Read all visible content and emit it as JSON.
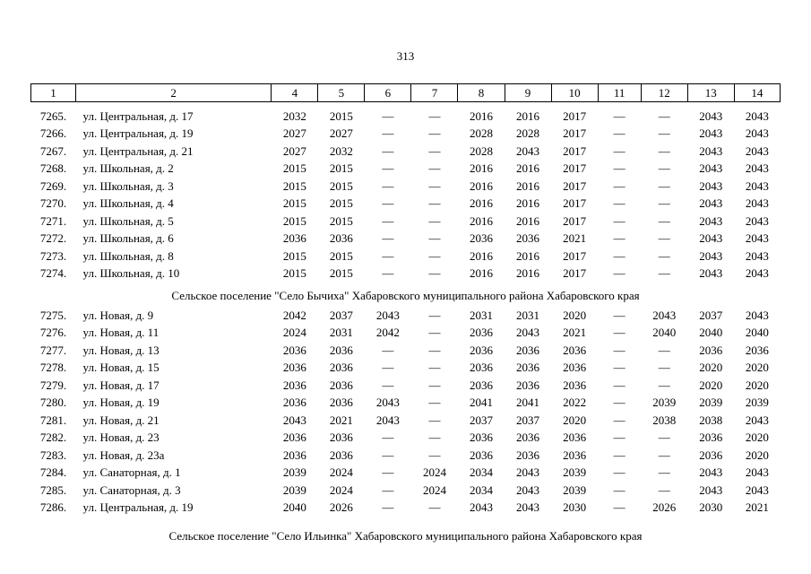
{
  "page": {
    "number": "313"
  },
  "table": {
    "headers": [
      "1",
      "2",
      "4",
      "5",
      "6",
      "7",
      "8",
      "9",
      "10",
      "11",
      "12",
      "13",
      "14"
    ],
    "sections": [
      {
        "title": "",
        "rows": [
          {
            "num": "7265.",
            "address": "ул. Центральная, д. 17",
            "values": [
              "2032",
              "2015",
              "—",
              "—",
              "2016",
              "2016",
              "2017",
              "—",
              "—",
              "2043",
              "2043"
            ]
          },
          {
            "num": "7266.",
            "address": "ул. Центральная, д. 19",
            "values": [
              "2027",
              "2027",
              "—",
              "—",
              "2028",
              "2028",
              "2017",
              "—",
              "—",
              "2043",
              "2043"
            ]
          },
          {
            "num": "7267.",
            "address": "ул. Центральная, д. 21",
            "values": [
              "2027",
              "2032",
              "—",
              "—",
              "2028",
              "2043",
              "2017",
              "—",
              "—",
              "2043",
              "2043"
            ]
          },
          {
            "num": "7268.",
            "address": "ул. Школьная, д. 2",
            "values": [
              "2015",
              "2015",
              "—",
              "—",
              "2016",
              "2016",
              "2017",
              "—",
              "—",
              "2043",
              "2043"
            ]
          },
          {
            "num": "7269.",
            "address": "ул. Школьная, д. 3",
            "values": [
              "2015",
              "2015",
              "—",
              "—",
              "2016",
              "2016",
              "2017",
              "—",
              "—",
              "2043",
              "2043"
            ]
          },
          {
            "num": "7270.",
            "address": "ул. Школьная, д. 4",
            "values": [
              "2015",
              "2015",
              "—",
              "—",
              "2016",
              "2016",
              "2017",
              "—",
              "—",
              "2043",
              "2043"
            ]
          },
          {
            "num": "7271.",
            "address": "ул. Школьная, д. 5",
            "values": [
              "2015",
              "2015",
              "—",
              "—",
              "2016",
              "2016",
              "2017",
              "—",
              "—",
              "2043",
              "2043"
            ]
          },
          {
            "num": "7272.",
            "address": "ул. Школьная, д. 6",
            "values": [
              "2036",
              "2036",
              "—",
              "—",
              "2036",
              "2036",
              "2021",
              "—",
              "—",
              "2043",
              "2043"
            ]
          },
          {
            "num": "7273.",
            "address": "ул. Школьная, д. 8",
            "values": [
              "2015",
              "2015",
              "—",
              "—",
              "2016",
              "2016",
              "2017",
              "—",
              "—",
              "2043",
              "2043"
            ]
          },
          {
            "num": "7274.",
            "address": "ул. Школьная, д. 10",
            "values": [
              "2015",
              "2015",
              "—",
              "—",
              "2016",
              "2016",
              "2017",
              "—",
              "—",
              "2043",
              "2043"
            ]
          }
        ]
      },
      {
        "title": "Сельское поселение \"Село Бычиха\" Хабаровского муниципального района Хабаровского края",
        "rows": [
          {
            "num": "7275.",
            "address": "ул. Новая, д. 9",
            "values": [
              "2042",
              "2037",
              "2043",
              "—",
              "2031",
              "2031",
              "2020",
              "—",
              "2043",
              "2037",
              "2043"
            ]
          },
          {
            "num": "7276.",
            "address": "ул. Новая, д. 11",
            "values": [
              "2024",
              "2031",
              "2042",
              "—",
              "2036",
              "2043",
              "2021",
              "—",
              "2040",
              "2040",
              "2040"
            ]
          },
          {
            "num": "7277.",
            "address": "ул. Новая, д. 13",
            "values": [
              "2036",
              "2036",
              "—",
              "—",
              "2036",
              "2036",
              "2036",
              "—",
              "—",
              "2036",
              "2036"
            ]
          },
          {
            "num": "7278.",
            "address": "ул. Новая, д. 15",
            "values": [
              "2036",
              "2036",
              "—",
              "—",
              "2036",
              "2036",
              "2036",
              "—",
              "—",
              "2020",
              "2020"
            ]
          },
          {
            "num": "7279.",
            "address": "ул. Новая, д. 17",
            "values": [
              "2036",
              "2036",
              "—",
              "—",
              "2036",
              "2036",
              "2036",
              "—",
              "—",
              "2020",
              "2020"
            ]
          },
          {
            "num": "7280.",
            "address": "ул. Новая, д. 19",
            "values": [
              "2036",
              "2036",
              "2043",
              "—",
              "2041",
              "2041",
              "2022",
              "—",
              "2039",
              "2039",
              "2039"
            ]
          },
          {
            "num": "7281.",
            "address": "ул. Новая, д. 21",
            "values": [
              "2043",
              "2021",
              "2043",
              "—",
              "2037",
              "2037",
              "2020",
              "—",
              "2038",
              "2038",
              "2043"
            ]
          },
          {
            "num": "7282.",
            "address": "ул. Новая, д. 23",
            "values": [
              "2036",
              "2036",
              "—",
              "—",
              "2036",
              "2036",
              "2036",
              "—",
              "—",
              "2036",
              "2020"
            ]
          },
          {
            "num": "7283.",
            "address": "ул. Новая, д. 23а",
            "values": [
              "2036",
              "2036",
              "—",
              "—",
              "2036",
              "2036",
              "2036",
              "—",
              "—",
              "2036",
              "2020"
            ]
          },
          {
            "num": "7284.",
            "address": "ул. Санаторная, д. 1",
            "values": [
              "2039",
              "2024",
              "—",
              "2024",
              "2034",
              "2043",
              "2039",
              "—",
              "—",
              "2043",
              "2043"
            ]
          },
          {
            "num": "7285.",
            "address": "ул. Санаторная, д. 3",
            "values": [
              "2039",
              "2024",
              "—",
              "2024",
              "2034",
              "2043",
              "2039",
              "—",
              "—",
              "2043",
              "2043"
            ]
          },
          {
            "num": "7286.",
            "address": "ул. Центральная, д. 19",
            "values": [
              "2040",
              "2026",
              "—",
              "—",
              "2043",
              "2043",
              "2030",
              "—",
              "2026",
              "2030",
              "2021"
            ]
          }
        ]
      },
      {
        "title": "Сельское поселение \"Село Ильинка\" Хабаровского муниципального района Хабаровского края",
        "rows": []
      }
    ]
  }
}
